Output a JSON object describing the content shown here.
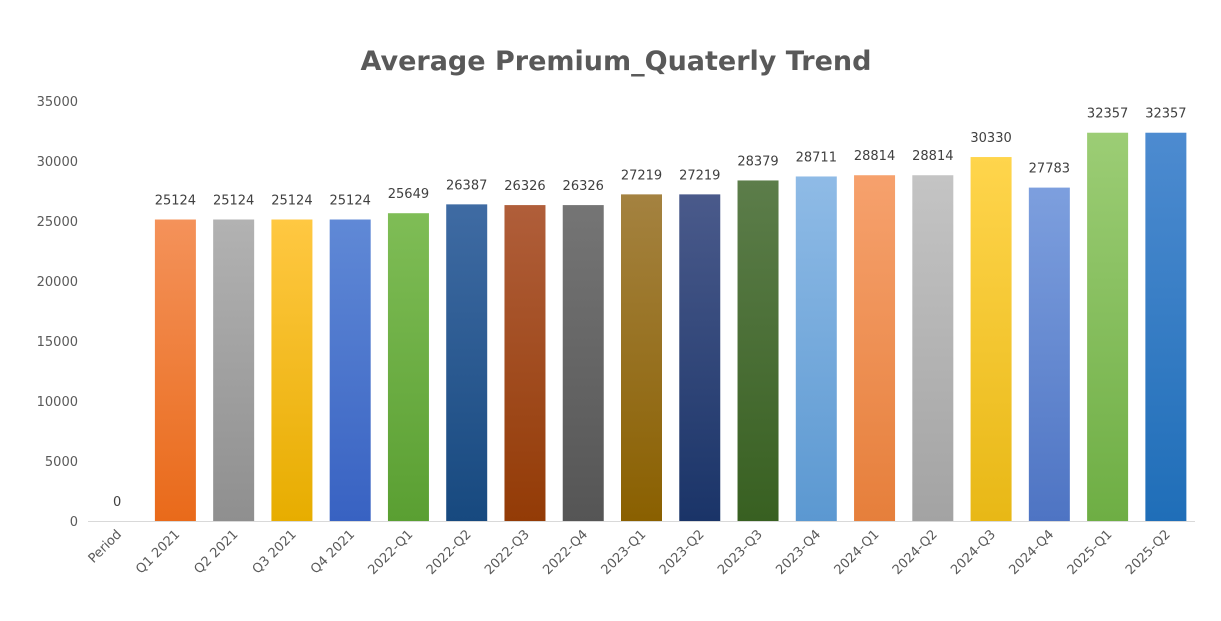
{
  "chart_data": {
    "type": "bar",
    "title": "Average Premium_Quaterly Trend",
    "xlabel": "",
    "ylabel": "",
    "ylim": [
      0,
      35000
    ],
    "yticks": [
      0,
      5000,
      10000,
      15000,
      20000,
      25000,
      30000,
      35000
    ],
    "grid": false,
    "legend": "none",
    "categories": [
      "Period",
      "Q1 2021",
      "Q2 2021",
      "Q3 2021",
      "Q4 2021",
      "2022-Q1",
      "2022-Q2",
      "2022-Q3",
      "2022-Q4",
      "2023-Q1",
      "2023-Q2",
      "2023-Q3",
      "2023-Q4",
      "2024-Q1",
      "2024-Q2",
      "2024-Q3",
      "2024-Q4",
      "2025-Q1",
      "2025-Q2"
    ],
    "values": [
      0,
      25124,
      25124,
      25124,
      25124,
      25649,
      26387,
      26326,
      26326,
      27219,
      27219,
      28379,
      28711,
      28814,
      28814,
      30330,
      27783,
      32357,
      32357
    ],
    "colors": [
      [
        "#ffffff",
        "#ffffff"
      ],
      [
        "#f4925a",
        "#e96a1a"
      ],
      [
        "#b2b2b2",
        "#8f8f8f"
      ],
      [
        "#ffc842",
        "#e7ad00"
      ],
      [
        "#6089d6",
        "#3862c2"
      ],
      [
        "#7fbd56",
        "#5a9f32"
      ],
      [
        "#3f6ba3",
        "#17497f"
      ],
      [
        "#b05e3a",
        "#933b06"
      ],
      [
        "#757575",
        "#555555"
      ],
      [
        "#a48240",
        "#8a6000"
      ],
      [
        "#4a5a8b",
        "#1a3468"
      ],
      [
        "#5c7d4a",
        "#386021"
      ],
      [
        "#8fbbe6",
        "#5b98d1"
      ],
      [
        "#f6a16d",
        "#e67f3b"
      ],
      [
        "#c4c4c4",
        "#a3a3a3"
      ],
      [
        "#ffd54c",
        "#e8b816"
      ],
      [
        "#7d9fde",
        "#4e74c3"
      ],
      [
        "#9ccd75",
        "#6eae44"
      ],
      [
        "#4d8bd0",
        "#1f6eb8"
      ]
    ]
  }
}
